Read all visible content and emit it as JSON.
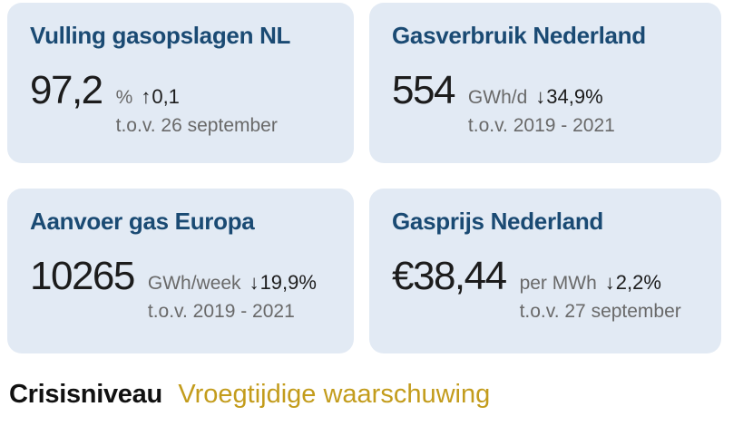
{
  "cards": [
    {
      "title": "Vulling gasopslagen NL",
      "value": "97,2",
      "unit": "%",
      "delta_arrow": "↑",
      "delta_direction": "up",
      "delta": "0,1",
      "comparison": "t.o.v. 26 september"
    },
    {
      "title": "Gasverbruik Nederland",
      "value": "554",
      "unit": "GWh/d",
      "delta_arrow": "↓",
      "delta_direction": "down",
      "delta": "34,9%",
      "comparison": "t.o.v. 2019 - 2021"
    },
    {
      "title": "Aanvoer gas Europa",
      "value": "10265",
      "unit": "GWh/week",
      "delta_arrow": "↓",
      "delta_direction": "down",
      "delta": "19,9%",
      "comparison": "t.o.v. 2019 - 2021"
    },
    {
      "title": "Gasprijs Nederland",
      "value": "€38,44",
      "unit": "per MWh",
      "delta_arrow": "↓",
      "delta_direction": "down",
      "delta": "2,2%",
      "comparison": "t.o.v. 27 september"
    }
  ],
  "crisis": {
    "label": "Crisisniveau",
    "level": "Vroegtijdige waarschuwing"
  },
  "colors": {
    "card_background": "#e2eaf4",
    "title": "#1a4a73",
    "value_text": "#1c1c1c",
    "muted_text": "#696969",
    "crisis_level_text": "#c39c1c",
    "page_background": "#ffffff"
  }
}
